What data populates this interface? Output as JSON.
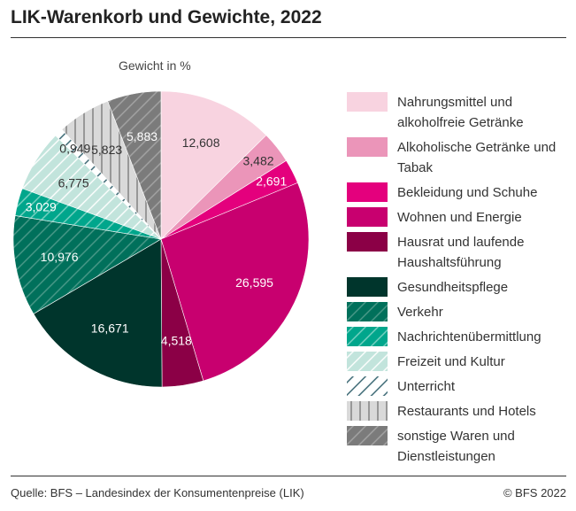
{
  "chart_data": {
    "type": "pie",
    "title": "LIK-Warenkorb und Gewichte, 2022",
    "subtitle": "Gewicht in %",
    "categories": [
      "Nahrungsmittel und alkoholfreie Getränke",
      "Alkoholische Getränke und Tabak",
      "Bekleidung und Schuhe",
      "Wohnen und Energie",
      "Hausrat und laufende Haushaltsführung",
      "Gesundheitspflege",
      "Verkehr",
      "Nachrichtenübermittlung",
      "Freizeit und Kultur",
      "Unterricht",
      "Restaurants und Hotels",
      "sonstige Waren und Dienstleistungen"
    ],
    "values": [
      12.608,
      3.482,
      2.691,
      26.595,
      4.518,
      16.671,
      10.976,
      3.029,
      6.775,
      0.949,
      5.823,
      5.883
    ],
    "value_labels": [
      "12,608",
      "3,482",
      "2,691",
      "26,595",
      "4,518",
      "16,671",
      "10,976",
      "3,029",
      "6,775",
      "0,949",
      "5,823",
      "5,883"
    ],
    "colors": [
      "#f8d3e0",
      "#eb95b9",
      "#e4007d",
      "#c8006f",
      "#8b0046",
      "#00352c",
      "#00705b",
      "#00a68c",
      "#c2e4dc",
      "#ffffff",
      "#d9d9d9",
      "#7b7b7b"
    ],
    "patterns": [
      null,
      null,
      null,
      null,
      null,
      null,
      "diagonal",
      "diagonal",
      "diagonal",
      "diagonal",
      "vertical",
      "diagonal"
    ],
    "pattern_colors": [
      null,
      null,
      null,
      null,
      null,
      null,
      "#4d9a8a",
      "#7fd3c4",
      "#ffffff",
      "#2f5f6b",
      "#7b7b7b",
      "#a5a5a5"
    ],
    "source": "Quelle: BFS – Landesindex der Konsumentenpreise (LIK)",
    "copyright": "© BFS 2022"
  }
}
